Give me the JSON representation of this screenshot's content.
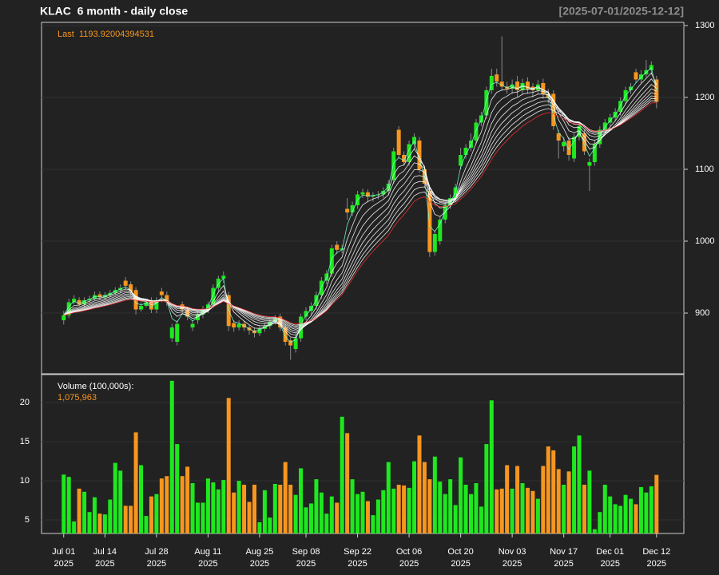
{
  "chart_data": {
    "type": "candlestick",
    "title": "KLAC  6 month - daily close",
    "date_range": "[2025-07-01/2025-12-12]",
    "last_label": "Last",
    "xlim": [
      -4.3,
      120.3
    ],
    "xticks": [
      {
        "value": 0,
        "label": [
          "Jul 01",
          "2025"
        ]
      },
      {
        "value": 8,
        "label": [
          "Jul 14",
          "2025"
        ]
      },
      {
        "value": 18,
        "label": [
          "Jul 28",
          "2025"
        ]
      },
      {
        "value": 28,
        "label": [
          "Aug 11",
          "2025"
        ]
      },
      {
        "value": 38,
        "label": [
          "Aug 25",
          "2025"
        ]
      },
      {
        "value": 47,
        "label": [
          "Sep 08",
          "2025"
        ]
      },
      {
        "value": 57,
        "label": [
          "Sep 22",
          "2025"
        ]
      },
      {
        "value": 67,
        "label": [
          "Oct 06",
          "2025"
        ]
      },
      {
        "value": 77,
        "label": [
          "Oct 20",
          "2025"
        ]
      },
      {
        "value": 87,
        "label": [
          "Nov 03",
          "2025"
        ]
      },
      {
        "value": 97,
        "label": [
          "Nov 17",
          "2025"
        ]
      },
      {
        "value": 106,
        "label": [
          "Dec 01",
          "2025"
        ]
      },
      {
        "value": 115,
        "label": [
          "Dec 12",
          "2025"
        ]
      }
    ],
    "open": [
      890,
      897,
      915,
      918,
      912,
      918,
      920,
      926,
      922,
      925,
      928,
      932,
      945,
      940,
      932,
      905,
      910,
      918,
      905,
      930,
      925,
      865,
      860,
      912,
      905,
      880,
      890,
      898,
      905,
      912,
      935,
      948,
      925,
      886,
      880,
      885,
      880,
      876,
      872,
      878,
      882,
      888,
      895,
      880,
      862,
      850,
      865,
      895,
      903,
      910,
      925,
      945,
      955,
      995,
      988,
      1045,
      1040,
      1050,
      1065,
      1068,
      1062,
      1064,
      1065,
      1070,
      1085,
      1155,
      1120,
      1110,
      1135,
      1140,
      1100,
      1070,
      985,
      1000,
      1030,
      1050,
      1060,
      1105,
      1120,
      1130,
      1140,
      1165,
      1175,
      1210,
      1232,
      1222,
      1215,
      1212,
      1222,
      1210,
      1222,
      1215,
      1210,
      1220,
      1205,
      1205,
      1150,
      1132,
      1140,
      1115,
      1145,
      1150,
      1105,
      1110,
      1135,
      1155,
      1165,
      1172,
      1180,
      1195,
      1210,
      1235,
      1225,
      1232,
      1238,
      1225
    ],
    "high": [
      903,
      920,
      925,
      922,
      922,
      924,
      930,
      930,
      929,
      932,
      936,
      940,
      950,
      944,
      936,
      915,
      920,
      922,
      922,
      935,
      930,
      885,
      890,
      916,
      909,
      890,
      902,
      910,
      916,
      940,
      952,
      958,
      930,
      890,
      890,
      889,
      884,
      880,
      882,
      886,
      892,
      897,
      899,
      884,
      866,
      870,
      899,
      908,
      915,
      930,
      950,
      960,
      995,
      1000,
      995,
      1060,
      1055,
      1070,
      1073,
      1072,
      1068,
      1070,
      1075,
      1085,
      1130,
      1160,
      1125,
      1140,
      1150,
      1145,
      1105,
      1075,
      1015,
      1035,
      1055,
      1065,
      1080,
      1130,
      1135,
      1150,
      1170,
      1180,
      1215,
      1240,
      1240,
      1285,
      1222,
      1225,
      1230,
      1226,
      1228,
      1220,
      1224,
      1226,
      1212,
      1210,
      1155,
      1145,
      1145,
      1150,
      1165,
      1155,
      1115,
      1140,
      1160,
      1170,
      1177,
      1185,
      1200,
      1215,
      1220,
      1240,
      1238,
      1252,
      1250,
      1230
    ],
    "low": [
      884,
      893,
      912,
      910,
      908,
      914,
      918,
      918,
      918,
      922,
      925,
      928,
      932,
      925,
      898,
      902,
      908,
      900,
      900,
      915,
      910,
      860,
      855,
      900,
      890,
      875,
      885,
      893,
      900,
      908,
      930,
      942,
      875,
      874,
      876,
      875,
      870,
      866,
      868,
      874,
      878,
      884,
      875,
      855,
      835,
      845,
      860,
      890,
      898,
      905,
      920,
      940,
      950,
      982,
      983,
      1030,
      1035,
      1045,
      1060,
      1055,
      1055,
      1058,
      1060,
      1064,
      1080,
      1115,
      1105,
      1105,
      1128,
      1095,
      1075,
      978,
      980,
      995,
      1025,
      1045,
      1055,
      1100,
      1115,
      1125,
      1135,
      1160,
      1170,
      1205,
      1215,
      1210,
      1205,
      1205,
      1200,
      1205,
      1205,
      1200,
      1205,
      1198,
      1192,
      1155,
      1115,
      1125,
      1112,
      1110,
      1140,
      1120,
      1070,
      1105,
      1130,
      1150,
      1160,
      1168,
      1175,
      1190,
      1205,
      1220,
      1220,
      1228,
      1232,
      1185
    ],
    "close": [
      897,
      915,
      920,
      912,
      918,
      920,
      925,
      922,
      925,
      928,
      932,
      935,
      938,
      930,
      905,
      910,
      915,
      905,
      918,
      925,
      915,
      880,
      885,
      905,
      895,
      885,
      898,
      905,
      912,
      935,
      948,
      952,
      882,
      880,
      885,
      880,
      876,
      872,
      878,
      882,
      888,
      892,
      880,
      860,
      855,
      865,
      895,
      903,
      910,
      925,
      945,
      955,
      990,
      988,
      990,
      1040,
      1050,
      1065,
      1068,
      1062,
      1064,
      1065,
      1070,
      1080,
      1125,
      1120,
      1110,
      1135,
      1145,
      1100,
      1080,
      985,
      1010,
      1030,
      1050,
      1060,
      1075,
      1120,
      1130,
      1140,
      1165,
      1175,
      1210,
      1230,
      1222,
      1215,
      1212,
      1218,
      1210,
      1220,
      1212,
      1210,
      1218,
      1205,
      1200,
      1160,
      1140,
      1138,
      1120,
      1145,
      1160,
      1125,
      1110,
      1135,
      1155,
      1165,
      1172,
      1180,
      1195,
      1210,
      1215,
      1225,
      1232,
      1238,
      1245,
      1193.92004394531
    ],
    "up_color": "#1ee81e",
    "down_color": "#f7961e",
    "ylim": [
      815.6,
      1304.4
    ],
    "yticks": [
      900,
      1000,
      1100,
      1200,
      1300
    ],
    "grid": true,
    "ema_periods": [
      2,
      4,
      6,
      8,
      10,
      12,
      14,
      16,
      18,
      20
    ],
    "ema_colors": [
      "#7dffd9",
      "#ffffff",
      "#ffffff",
      "#ffffff",
      "#ffffff",
      "#ffffff",
      "#ffffff",
      "#ffffff",
      "#ffffff",
      "#ff3030"
    ],
    "volume": {
      "title": "Volume (100,000s):",
      "values": [
        10.8,
        10.5,
        4.8,
        9,
        8.6,
        6,
        7.9,
        5.8,
        5.7,
        7.6,
        12.3,
        11.3,
        6.8,
        6.8,
        16.2,
        12,
        5.5,
        8,
        8.3,
        10.3,
        10.6,
        22.8,
        14.7,
        10.6,
        11.8,
        9.7,
        7.2,
        7.2,
        10.3,
        9.8,
        8.9,
        10.1,
        20.6,
        8.5,
        10,
        9.5,
        7.3,
        9.5,
        4.7,
        8.8,
        5.3,
        9.6,
        9.5,
        12.4,
        9.5,
        8.2,
        11.6,
        6.6,
        7.1,
        10.2,
        8.5,
        5.8,
        8,
        7.2,
        18.2,
        16.1,
        10.2,
        8.3,
        8.6,
        7.4,
        5.6,
        7.6,
        8.8,
        12.4,
        9,
        9.5,
        9.4,
        9.1,
        12.5,
        15.8,
        12.4,
        10.2,
        13.1,
        9.9,
        8.3,
        10.2,
        6.9,
        13,
        9.5,
        8.3,
        9.7,
        6.7,
        14.7,
        20.3,
        8.9,
        9,
        12,
        9,
        11.9,
        9.7,
        9.1,
        8.7,
        7.7,
        11.9,
        14.4,
        13.9,
        11.5,
        9.5,
        11.2,
        14.4,
        15.8,
        9.5,
        11.3,
        3.8,
        6,
        9.5,
        8,
        7,
        6.8,
        8.2,
        7.7,
        7,
        9.2,
        8.5,
        9.3,
        10.75963
      ],
      "last_value_label": "1,075,963",
      "ylim": [
        3.26,
        23.6
      ],
      "yticks": [
        5,
        10,
        15,
        20
      ]
    }
  }
}
